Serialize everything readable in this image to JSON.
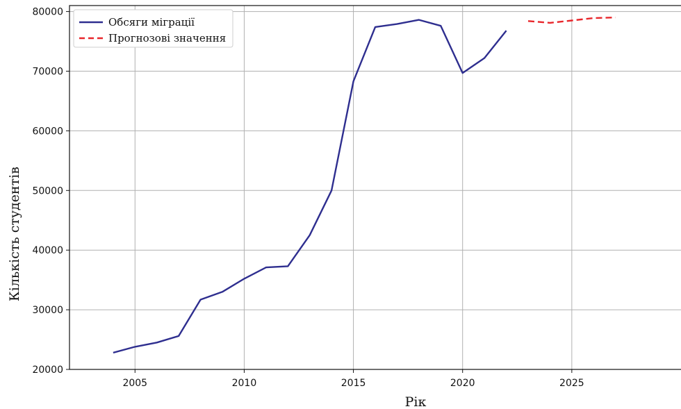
{
  "chart_data": {
    "type": "line",
    "xlabel": "Рік",
    "ylabel": "Кількість студентів",
    "xlim": [
      2002,
      2030
    ],
    "ylim": [
      20000,
      81000
    ],
    "x_ticks": [
      2005,
      2010,
      2015,
      2020,
      2025
    ],
    "y_ticks": [
      20000,
      30000,
      40000,
      50000,
      60000,
      70000,
      80000
    ],
    "grid": true,
    "legend_position": "top-left",
    "series": [
      {
        "name": "Обсяги міграції",
        "color": "#2e2e8f",
        "style": "solid",
        "x": [
          2004,
          2005,
          2006,
          2007,
          2008,
          2009,
          2010,
          2011,
          2012,
          2013,
          2014,
          2015,
          2016,
          2017,
          2018,
          2019,
          2020,
          2021,
          2022
        ],
        "y": [
          22800,
          23800,
          24500,
          25600,
          31700,
          33000,
          35200,
          37100,
          37300,
          42500,
          50000,
          68300,
          77400,
          77900,
          78600,
          77600,
          69700,
          72200,
          76800
        ]
      },
      {
        "name": "Прогнозові значення",
        "color": "#e8262b",
        "style": "dashed",
        "x": [
          2023,
          2024,
          2025,
          2026,
          2027
        ],
        "y": [
          78400,
          78100,
          78500,
          78900,
          79000
        ]
      }
    ]
  }
}
